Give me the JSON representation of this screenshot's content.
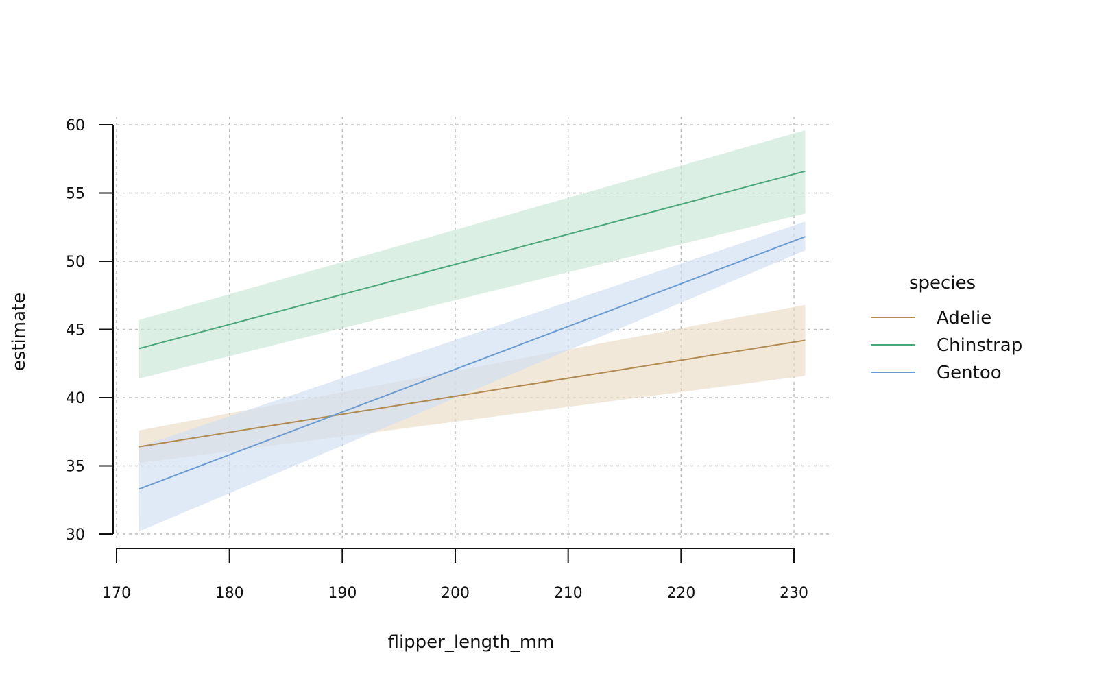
{
  "chart_data": {
    "type": "line",
    "xlabel": "flipper_length_mm",
    "ylabel": "estimate",
    "xlim": [
      170,
      230
    ],
    "ylim": [
      30,
      60
    ],
    "x_ticks": [
      170,
      180,
      190,
      200,
      210,
      220,
      230
    ],
    "y_ticks": [
      30,
      35,
      40,
      45,
      50,
      55,
      60
    ],
    "grid": true,
    "legend": {
      "title": "species",
      "placement": "right"
    },
    "series": [
      {
        "name": "Adelie",
        "color": "#b08a4e",
        "fill_color": "#e9dcc6",
        "x": [
          172,
          231
        ],
        "estimate": [
          36.4,
          44.2
        ],
        "conf_low": [
          35.2,
          41.6
        ],
        "conf_high": [
          37.6,
          46.8
        ]
      },
      {
        "name": "Chinstrap",
        "color": "#4aa77b",
        "fill_color": "#c9e6d6",
        "x": [
          172,
          231
        ],
        "estimate": [
          43.6,
          56.6
        ],
        "conf_low": [
          41.4,
          53.5
        ],
        "conf_high": [
          45.7,
          59.6
        ]
      },
      {
        "name": "Gentoo",
        "color": "#6a9bd0",
        "fill_color": "#cfdff2",
        "x": [
          172,
          231
        ],
        "estimate": [
          33.3,
          51.8
        ],
        "conf_low": [
          30.2,
          50.8
        ],
        "conf_high": [
          36.4,
          52.9
        ]
      }
    ]
  }
}
